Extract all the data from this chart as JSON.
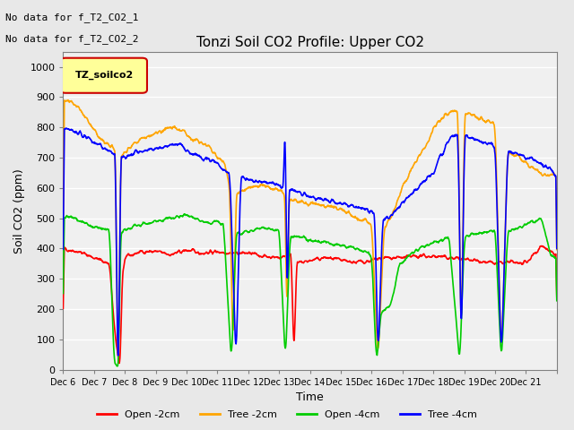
{
  "title": "Tonzi Soil CO2 Profile: Upper CO2",
  "xlabel": "Time",
  "ylabel": "Soil CO2 (ppm)",
  "ylim": [
    0,
    1050
  ],
  "yticks": [
    0,
    100,
    200,
    300,
    400,
    500,
    600,
    700,
    800,
    900,
    1000
  ],
  "legend_label": "TZ_soilco2",
  "legend_box_color": "#FFFF99",
  "legend_box_edge": "#CC0000",
  "no_data_text": [
    "No data for f_T2_CO2_1",
    "No data for f_T2_CO2_2"
  ],
  "line_colors": {
    "open_2cm": "#FF0000",
    "tree_2cm": "#FFA500",
    "open_4cm": "#00CC00",
    "tree_4cm": "#0000FF"
  },
  "line_labels": [
    "Open -2cm",
    "Tree -2cm",
    "Open -4cm",
    "Tree -4cm"
  ],
  "xtick_positions": [
    0,
    1,
    2,
    3,
    4,
    5,
    6,
    7,
    8,
    9,
    10,
    11,
    12,
    13,
    14,
    15,
    16
  ],
  "xtick_labels": [
    "Dec 6",
    "Dec 7",
    "Dec 8",
    "Dec 9",
    "Dec 10",
    "Dec 11",
    "Dec 12",
    "Dec 13",
    "Dec 14",
    "Dec 15",
    "Dec 16",
    "Dec 17",
    "Dec 18",
    "Dec 19",
    "Dec 20",
    "Dec 21",
    ""
  ],
  "bg_color": "#E8E8E8",
  "plot_bg_color": "#F0F0F0"
}
